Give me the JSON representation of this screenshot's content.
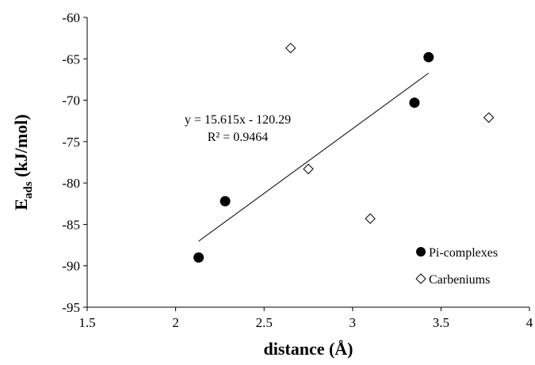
{
  "chart_data": {
    "type": "scatter",
    "xlabel": "distance (Å)",
    "ylabel_main": "E",
    "ylabel_sub": "ads",
    "ylabel_rest": " (kJ/mol)",
    "xlim": [
      1.5,
      4
    ],
    "ylim": [
      -95,
      -60
    ],
    "xticks": [
      1.5,
      2,
      2.5,
      3,
      3.5,
      4
    ],
    "xtick_labels": [
      "1.5",
      "2",
      "2.5",
      "3",
      "3.5",
      "4"
    ],
    "yticks": [
      -60,
      -65,
      -70,
      -75,
      -80,
      -85,
      -90,
      -95
    ],
    "ytick_labels": [
      "-60",
      "-65",
      "-70",
      "-75",
      "-80",
      "-85",
      "-90",
      "-95"
    ],
    "grid": false,
    "legend_position": "bottom-right",
    "series": [
      {
        "name": "Pi-complexes",
        "marker": "filled-circle",
        "color": "#000000",
        "x": [
          2.13,
          2.28,
          3.35,
          3.43
        ],
        "y": [
          -89.0,
          -82.2,
          -70.3,
          -64.8
        ]
      },
      {
        "name": "Carbeniums",
        "marker": "open-diamond",
        "color": "#000000",
        "x": [
          2.65,
          2.75,
          3.1,
          3.77
        ],
        "y": [
          -63.7,
          -78.3,
          -84.3,
          -72.1
        ]
      }
    ],
    "trendline": {
      "series": "Pi-complexes",
      "slope": 15.615,
      "intercept": -120.29,
      "x_range": [
        2.13,
        3.43
      ],
      "equation": "y = 15.615x - 120.29",
      "r_squared": "R² = 0.9464"
    }
  }
}
